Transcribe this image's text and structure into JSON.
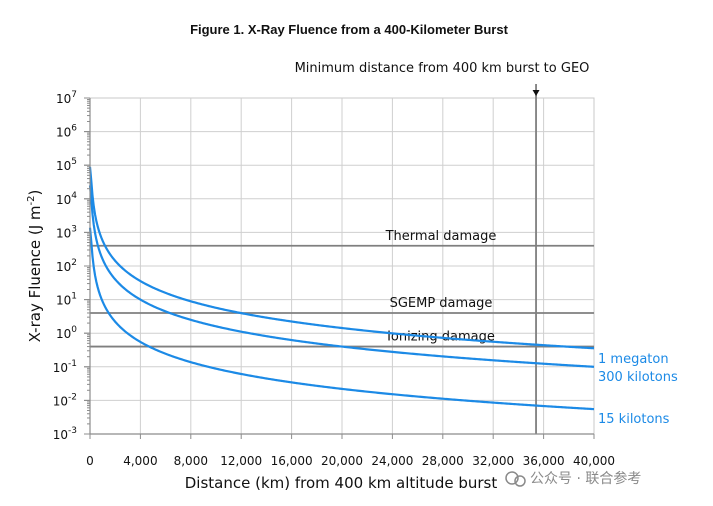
{
  "chart_data": {
    "type": "line",
    "title": "Figure 1. X-Ray Fluence from a 400-Kilometer Burst",
    "xlabel": "Distance (km) from 400 km altitude burst",
    "ylabel": "X-ray Fluence (J m",
    "ylabel_sup": "-2",
    "ylabel_close": ")",
    "x_scale": "linear",
    "y_scale": "log",
    "xlim": [
      0,
      40000
    ],
    "ylim": [
      0.001,
      10000000
    ],
    "grid": true,
    "x_ticks": [
      0,
      4000,
      8000,
      12000,
      16000,
      20000,
      24000,
      28000,
      32000,
      36000,
      40000
    ],
    "x_tick_labels": [
      "0",
      "4,000",
      "8,000",
      "12,000",
      "16,000",
      "20,000",
      "24,000",
      "28,000",
      "32,000",
      "36,000",
      "40,000"
    ],
    "y_ticks": [
      {
        "base": "10",
        "exp": "7",
        "value": 10000000
      },
      {
        "base": "10",
        "exp": "6",
        "value": 1000000
      },
      {
        "base": "10",
        "exp": "5",
        "value": 100000
      },
      {
        "base": "10",
        "exp": "4",
        "value": 10000
      },
      {
        "base": "10",
        "exp": "3",
        "value": 1000
      },
      {
        "base": "10",
        "exp": "2",
        "value": 100
      },
      {
        "base": "10",
        "exp": "1",
        "value": 10
      },
      {
        "base": "10",
        "exp": "0",
        "value": 1
      },
      {
        "base": "10",
        "exp": "-1",
        "value": 0.1
      },
      {
        "base": "10",
        "exp": "-2",
        "value": 0.01
      },
      {
        "base": "10",
        "exp": "-3",
        "value": 0.001
      }
    ],
    "thresholds": [
      {
        "label": "Thermal damage",
        "value": 400
      },
      {
        "label": "SGEMP damage",
        "value": 4
      },
      {
        "label": "Ionizing damage",
        "value": 0.4
      }
    ],
    "vertical_marker": {
      "label": "Minimum distance from 400 km burst to GEO",
      "x": 35400
    },
    "series": [
      {
        "name": "1 megaton",
        "k": 570000000.0,
        "color": "#1c8ae6"
      },
      {
        "name": "300 kilotons",
        "k": 160000000.0,
        "color": "#1c8ae6"
      },
      {
        "name": "15 kilotons",
        "k": 8800000.0,
        "color": "#1c8ae6"
      }
    ]
  },
  "watermark": "公众号 · 联合参考"
}
